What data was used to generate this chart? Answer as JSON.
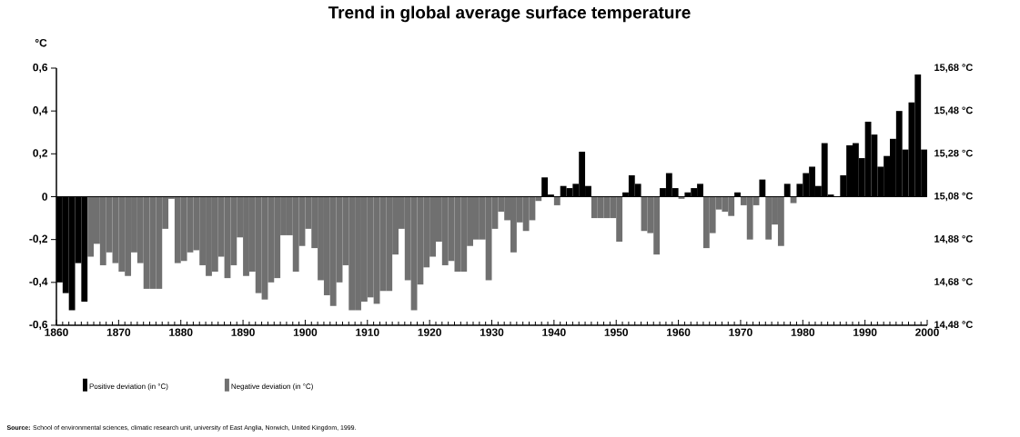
{
  "chart_data": {
    "type": "bar",
    "title": "Trend in global average surface temperature",
    "ylabel": "°C",
    "x": [
      1860,
      1861,
      1862,
      1863,
      1864,
      1865,
      1866,
      1867,
      1868,
      1869,
      1870,
      1871,
      1872,
      1873,
      1874,
      1875,
      1876,
      1877,
      1878,
      1879,
      1880,
      1881,
      1882,
      1883,
      1884,
      1885,
      1886,
      1887,
      1888,
      1889,
      1890,
      1891,
      1892,
      1893,
      1894,
      1895,
      1896,
      1897,
      1898,
      1899,
      1900,
      1901,
      1902,
      1903,
      1904,
      1905,
      1906,
      1907,
      1908,
      1909,
      1910,
      1911,
      1912,
      1913,
      1914,
      1915,
      1916,
      1917,
      1918,
      1919,
      1920,
      1921,
      1922,
      1923,
      1924,
      1925,
      1926,
      1927,
      1928,
      1929,
      1930,
      1931,
      1932,
      1933,
      1934,
      1935,
      1936,
      1937,
      1938,
      1939,
      1940,
      1941,
      1942,
      1943,
      1944,
      1945,
      1946,
      1947,
      1948,
      1949,
      1950,
      1951,
      1952,
      1953,
      1954,
      1955,
      1956,
      1957,
      1958,
      1959,
      1960,
      1961,
      1962,
      1963,
      1964,
      1965,
      1966,
      1967,
      1968,
      1969,
      1970,
      1971,
      1972,
      1973,
      1974,
      1975,
      1976,
      1977,
      1978,
      1979,
      1980,
      1981,
      1982,
      1983,
      1984,
      1985,
      1986,
      1987,
      1988,
      1989,
      1990,
      1991,
      1992,
      1993,
      1994,
      1995,
      1996,
      1997,
      1998,
      1999
    ],
    "series": [
      {
        "name": "Positive deviation (in °C)",
        "color": "#000000",
        "values": [
          -0.4,
          -0.45,
          -0.53,
          -0.31,
          -0.49,
          null,
          null,
          null,
          null,
          null,
          null,
          null,
          null,
          null,
          null,
          null,
          null,
          null,
          null,
          null,
          null,
          null,
          null,
          null,
          null,
          null,
          null,
          null,
          null,
          null,
          null,
          null,
          null,
          null,
          null,
          null,
          null,
          null,
          null,
          null,
          null,
          null,
          null,
          null,
          null,
          null,
          null,
          null,
          null,
          null,
          null,
          null,
          null,
          null,
          null,
          null,
          null,
          null,
          null,
          null,
          null,
          null,
          null,
          null,
          null,
          null,
          null,
          null,
          null,
          null,
          null,
          null,
          null,
          null,
          null,
          null,
          null,
          null,
          0.09,
          0.01,
          null,
          0.05,
          0.04,
          0.06,
          0.21,
          0.05,
          null,
          null,
          null,
          null,
          null,
          0.02,
          0.1,
          0.06,
          null,
          null,
          null,
          0.04,
          0.11,
          0.04,
          null,
          0.02,
          0.04,
          0.06,
          null,
          null,
          null,
          null,
          null,
          0.02,
          null,
          null,
          null,
          0.08,
          null,
          null,
          null,
          0.06,
          null,
          0.06,
          0.11,
          0.14,
          0.05,
          0.25,
          0.01,
          0.0,
          0.1,
          0.24,
          0.25,
          0.18,
          0.35,
          0.29,
          0.14,
          0.19,
          0.27,
          0.4,
          0.22,
          0.44,
          0.57,
          0.22
        ]
      },
      {
        "name": "Negative deviation (in °C)",
        "color": "#707070",
        "values": [
          null,
          null,
          null,
          null,
          null,
          -0.28,
          -0.22,
          -0.32,
          -0.26,
          -0.31,
          -0.35,
          -0.37,
          -0.26,
          -0.31,
          -0.43,
          -0.43,
          -0.43,
          -0.15,
          -0.01,
          -0.31,
          -0.3,
          -0.26,
          -0.25,
          -0.32,
          -0.37,
          -0.35,
          -0.28,
          -0.38,
          -0.32,
          -0.19,
          -0.37,
          -0.35,
          -0.45,
          -0.48,
          -0.4,
          -0.38,
          -0.18,
          -0.18,
          -0.35,
          -0.23,
          -0.15,
          -0.24,
          -0.39,
          -0.46,
          -0.51,
          -0.4,
          -0.32,
          -0.53,
          -0.53,
          -0.49,
          -0.47,
          -0.5,
          -0.44,
          -0.44,
          -0.27,
          -0.15,
          -0.39,
          -0.53,
          -0.41,
          -0.33,
          -0.28,
          -0.21,
          -0.32,
          -0.3,
          -0.35,
          -0.35,
          -0.23,
          -0.2,
          -0.2,
          -0.39,
          -0.15,
          -0.07,
          -0.11,
          -0.26,
          -0.12,
          -0.16,
          -0.11,
          -0.02,
          null,
          null,
          -0.04,
          null,
          null,
          null,
          null,
          null,
          -0.1,
          -0.1,
          -0.1,
          -0.1,
          -0.21,
          null,
          null,
          null,
          -0.16,
          -0.17,
          -0.27,
          null,
          null,
          null,
          -0.01,
          null,
          null,
          null,
          -0.24,
          -0.17,
          -0.06,
          -0.07,
          -0.09,
          null,
          -0.04,
          -0.2,
          -0.04,
          null,
          -0.2,
          -0.13,
          -0.23,
          null,
          -0.03,
          null,
          null,
          null,
          null,
          null,
          null,
          null,
          null,
          null,
          null,
          null,
          null,
          null,
          null,
          null,
          null,
          null,
          null,
          null,
          null,
          null
        ]
      }
    ],
    "xlim": [
      1860,
      2000
    ],
    "xticks": [
      1860,
      1870,
      1880,
      1890,
      1900,
      1910,
      1920,
      1930,
      1940,
      1950,
      1960,
      1970,
      1980,
      1990,
      2000
    ],
    "ylim": [
      -0.6,
      0.6
    ],
    "yticks": [
      {
        "value": -0.6,
        "label": "-0,6"
      },
      {
        "value": -0.4,
        "label": "-0,4"
      },
      {
        "value": -0.2,
        "label": "-0,2"
      },
      0,
      {
        "value": 0.2,
        "label": "0,2"
      },
      {
        "value": 0.4,
        "label": "0,4"
      },
      {
        "value": 0.6,
        "label": "0,6"
      }
    ],
    "y2lim": [
      14.48,
      15.68
    ],
    "y2ticks": [
      {
        "value": 14.48,
        "label": "14,48 °C"
      },
      {
        "value": 14.68,
        "label": "14,68 °C"
      },
      {
        "value": 14.88,
        "label": "14,88 °C"
      },
      {
        "value": 15.08,
        "label": "15,08 °C"
      },
      {
        "value": 15.28,
        "label": "15,28 °C"
      },
      {
        "value": 15.48,
        "label": "15,48 °C"
      },
      {
        "value": 15.68,
        "label": "15,68 °C"
      }
    ],
    "legend": "bottom left",
    "annotations": [
      "**Source:** School of environmental sciences, climatic research unit, university of East Anglia, Norwich, United Kingdom, 1999."
    ]
  }
}
